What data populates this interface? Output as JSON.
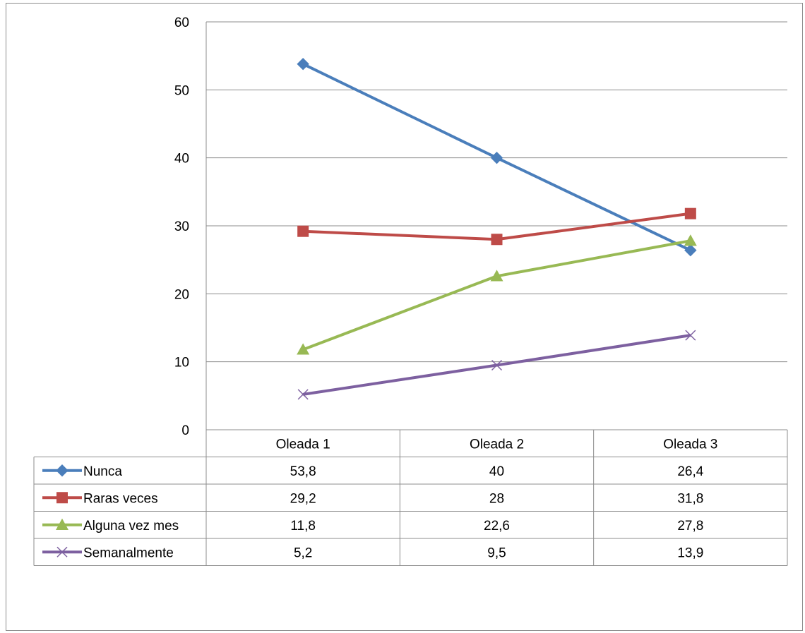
{
  "chart_data": {
    "type": "line",
    "title": "",
    "xlabel": "",
    "ylabel": "",
    "categories": [
      "Oleada 1",
      "Oleada 2",
      "Oleada 3"
    ],
    "ylim": [
      0,
      60
    ],
    "yticks": [
      0,
      10,
      20,
      30,
      40,
      50,
      60
    ],
    "grid": true,
    "legend": "data-table",
    "series": [
      {
        "name": "Nunca",
        "values": [
          53.8,
          40,
          26.4
        ],
        "labels": [
          "53,8",
          "40",
          "26,4"
        ],
        "color": "#4a7ebb",
        "marker": "diamond"
      },
      {
        "name": "Raras veces",
        "values": [
          29.2,
          28,
          31.8
        ],
        "labels": [
          "29,2",
          "28",
          "31,8"
        ],
        "color": "#be4b48",
        "marker": "square"
      },
      {
        "name": "Alguna vez mes",
        "values": [
          11.8,
          22.6,
          27.8
        ],
        "labels": [
          "11,8",
          "22,6",
          "27,8"
        ],
        "color": "#98b954",
        "marker": "triangle"
      },
      {
        "name": "Semanalmente",
        "values": [
          5.2,
          9.5,
          13.9
        ],
        "labels": [
          "5,2",
          "9,5",
          "13,9"
        ],
        "color": "#7d60a0",
        "marker": "x"
      }
    ]
  }
}
